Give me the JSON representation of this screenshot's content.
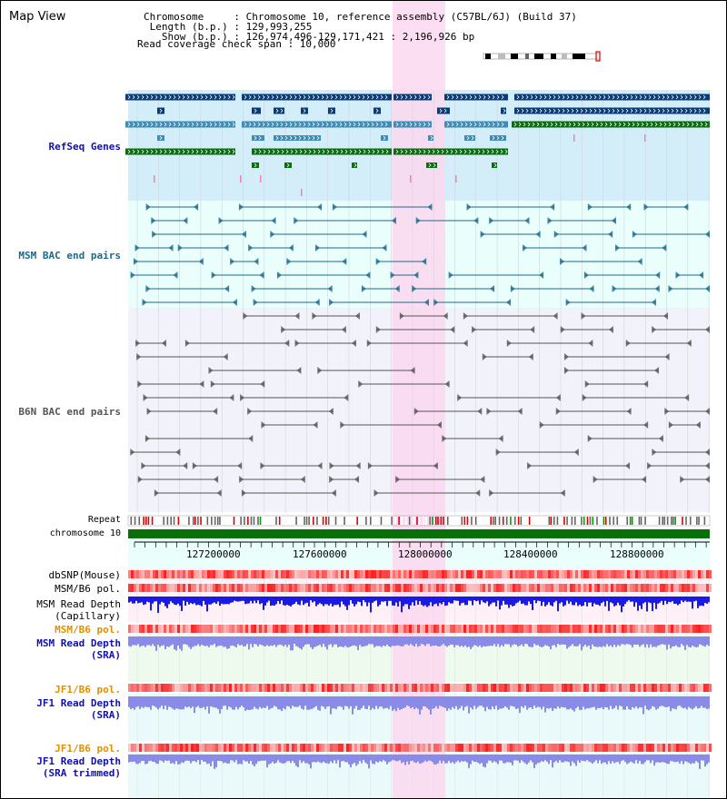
{
  "page": {
    "title": "Map View"
  },
  "header": {
    "chromosome": "Chromosome     : Chromosome 10, reference assembly (C57BL/6J) (Build 37)",
    "length": " Length (b.p.) : 129,993,255",
    "show": "   Show (b.p.) : 126,974,496-129,171,421 : 2,196,926 bp",
    "coverage": "Read coverage check span : 10,000"
  },
  "tracks": {
    "refseq": "RefSeq Genes",
    "msm_bac": "MSM BAC end pairs",
    "b6n_bac": "B6N BAC end pairs",
    "repeat": "Repeat",
    "chromosome": "chromosome 10",
    "dbsnp": "dbSNP(Mouse)",
    "msm_b6_pol": "MSM/B6 pol.",
    "msm_depth_cap_1": "MSM Read Depth",
    "msm_depth_cap_2": "(Capillary)",
    "msm_b6_pol2": "MSM/B6 pol.",
    "msm_depth_sra_1": "MSM Read Depth",
    "msm_depth_sra_2": "(SRA)",
    "jf1_b6_pol": "JF1/B6 pol.",
    "jf1_depth_1": "JF1 Read Depth",
    "jf1_depth_2": "(SRA)",
    "jf1_b6_pol2": "JF1/B6 pol.",
    "jf1_trim_1": "JF1 Read Depth",
    "jf1_trim_2": "(SRA trimmed)"
  },
  "axis": {
    "ticks": [
      "127200000",
      "127600000",
      "128000000",
      "128400000",
      "128800000"
    ]
  },
  "colors": {
    "refseq_bg": "#d3eef8",
    "cyan_bg": "#eafffc",
    "grey_bg": "#f2f2fa",
    "highlight": "#fcd8f0",
    "navy": "#0a3a78",
    "teal": "#3f8db6",
    "green": "#0a6e10",
    "msm_line": "#1a6a8c",
    "b6n_line": "#555555",
    "chrom": "#087008",
    "depth_cap": "#1a1ae6",
    "depth_sra": "#8a8ae8"
  }
}
